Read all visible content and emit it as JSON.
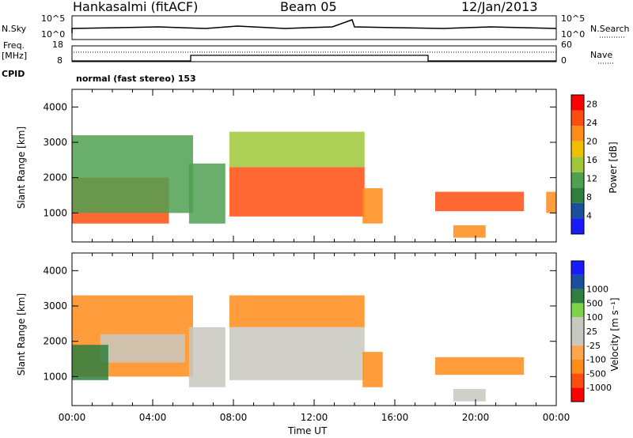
{
  "header": {
    "station": "Hankasalmi (fitACF)",
    "beam": "Beam 05",
    "date": "12/Jan/2013"
  },
  "top_panels": {
    "nsky_label": "N.Sky",
    "nsearch_label": "N.Search",
    "noise_tick_hi": "10^5",
    "noise_tick_lo": "10^0",
    "freq_label": "Freq.",
    "freq_unit": "[MHz]",
    "freq_tick_hi": "18",
    "freq_tick_lo": "8",
    "nave_label": "Nave",
    "nave_tick_hi": "60",
    "nave_tick_lo": "0",
    "cpid_label": "CPID",
    "cpid_text": "normal (fast stereo) 153"
  },
  "colors": {
    "power_scale": [
      "#1a1aff",
      "#1a4fa0",
      "#2f7f3f",
      "#4fa050",
      "#9fc83a",
      "#f0c000",
      "#ff8c1a",
      "#ff4d0f",
      "#ff0000"
    ],
    "velocity_scale": [
      "#ff0000",
      "#ff4d0f",
      "#ff8c1a",
      "#ffa64d",
      "#c8c8c0",
      "#c8c8c0",
      "#7ed348",
      "#2f7f3f",
      "#1a4fa0",
      "#1a1aff"
    ],
    "gray": "#c8c8c0"
  },
  "chart_data": [
    {
      "type": "heatmap",
      "title": "Beam 05",
      "ylabel": "Slant Range [km]",
      "ylim": [
        180,
        4500
      ],
      "y_ticks": [
        "1000",
        "2000",
        "3000",
        "4000"
      ],
      "xlim_hours": [
        0,
        24
      ],
      "colorbar_label": "Power [dB]",
      "colorbar_ticks": [
        "4",
        "8",
        "12",
        "16",
        "20",
        "24",
        "28"
      ],
      "colorbar_range": [
        0,
        30
      ],
      "regions": [
        {
          "t0": 0.0,
          "t1": 4.8,
          "r0": 700,
          "r1": 2000,
          "value": 26
        },
        {
          "t0": 0.0,
          "t1": 6.0,
          "r0": 1000,
          "r1": 3200,
          "value": 12
        },
        {
          "t0": 5.8,
          "t1": 7.6,
          "r0": 700,
          "r1": 2400,
          "value": 10
        },
        {
          "t0": 7.8,
          "t1": 14.5,
          "r0": 900,
          "r1": 2300,
          "value": 26
        },
        {
          "t0": 7.8,
          "t1": 14.5,
          "r0": 2300,
          "r1": 3300,
          "value": 16
        },
        {
          "t0": 14.4,
          "t1": 15.4,
          "r0": 700,
          "r1": 1700,
          "value": 20
        },
        {
          "t0": 18.0,
          "t1": 22.4,
          "r0": 1050,
          "r1": 1600,
          "value": 26
        },
        {
          "t0": 23.5,
          "t1": 24.0,
          "r0": 1000,
          "r1": 1600,
          "value": 22
        },
        {
          "t0": 18.9,
          "t1": 20.5,
          "r0": 300,
          "r1": 650,
          "value": 22
        }
      ]
    },
    {
      "type": "heatmap",
      "ylabel": "Slant Range [km]",
      "ylim": [
        180,
        4500
      ],
      "y_ticks": [
        "1000",
        "2000",
        "3000",
        "4000"
      ],
      "xlim_hours": [
        0,
        24
      ],
      "x_ticks": [
        "00:00",
        "04:00",
        "08:00",
        "12:00",
        "16:00",
        "20:00",
        "00:00"
      ],
      "xlabel": "Time UT",
      "colorbar_label": "Velocity [m s⁻¹]",
      "colorbar_ticks": [
        "-1000",
        "-500",
        "-100",
        "-25",
        "25",
        "100",
        "500",
        "1000"
      ],
      "regions": [
        {
          "t0": 0.0,
          "t1": 6.0,
          "r0": 1000,
          "r1": 3300,
          "value": -300
        },
        {
          "t0": 1.4,
          "t1": 5.6,
          "r0": 1400,
          "r1": 2200,
          "value": 0
        },
        {
          "t0": 0.0,
          "t1": 1.8,
          "r0": 900,
          "r1": 1900,
          "value": 400
        },
        {
          "t0": 5.8,
          "t1": 7.6,
          "r0": 700,
          "r1": 2400,
          "value": 0
        },
        {
          "t0": 7.8,
          "t1": 14.5,
          "r0": 900,
          "r1": 2400,
          "value": 0
        },
        {
          "t0": 7.8,
          "t1": 14.5,
          "r0": 2400,
          "r1": 3300,
          "value": -300
        },
        {
          "t0": 14.4,
          "t1": 15.4,
          "r0": 700,
          "r1": 1700,
          "value": -300
        },
        {
          "t0": 18.0,
          "t1": 22.4,
          "r0": 1050,
          "r1": 1550,
          "value": -300
        },
        {
          "t0": 18.9,
          "t1": 20.5,
          "r0": 300,
          "r1": 650,
          "value": 0
        }
      ]
    }
  ]
}
